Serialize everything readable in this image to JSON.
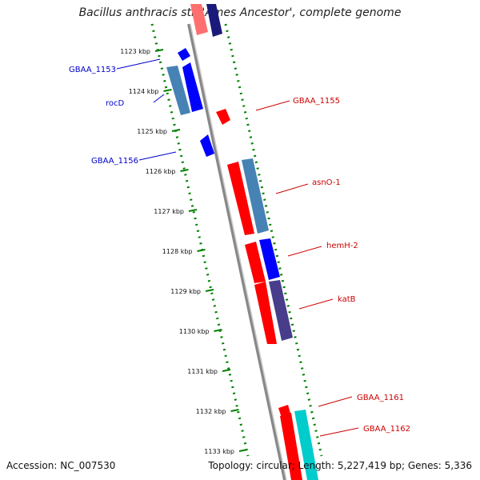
{
  "title": "Bacillus anthracis str. 'Ames Ancestor', complete genome",
  "footer": {
    "accession": "Accession: NC_007530",
    "topology": "Topology: circular; Length: 5,227,419 bp; Genes: 5,336"
  },
  "ticks": [
    "1123 kbp",
    "1124 kbp",
    "1125 kbp",
    "1126 kbp",
    "1127 kbp",
    "1128 kbp",
    "1129 kbp",
    "1130 kbp",
    "1131 kbp",
    "1132 kbp",
    "1133 kbp"
  ],
  "labels": {
    "left": [
      "GBAA_1153",
      "rocD",
      "GBAA_1156"
    ],
    "right": [
      "GBAA_1155",
      "asnO-1",
      "hemH-2",
      "katB",
      "GBAA_1161",
      "GBAA_1162"
    ]
  },
  "colors": {
    "forward": "#ff0000",
    "reverse": "#0000ff",
    "steelblue": "#4682b4",
    "darkslate": "#483d8b",
    "cyan": "#00cccc",
    "navy": "#000080",
    "backbone": "#808080",
    "ticks": "#008000",
    "left_label": "#0000cc",
    "right_label": "#cc0000"
  }
}
